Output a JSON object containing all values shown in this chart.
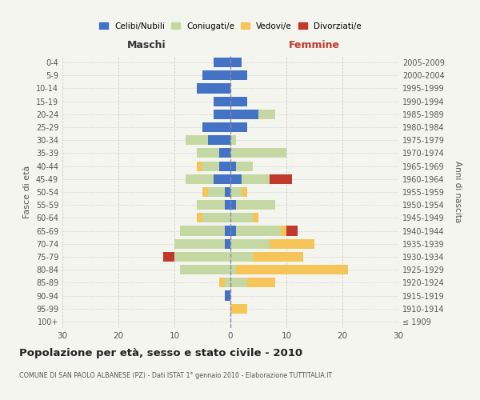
{
  "age_groups": [
    "100+",
    "95-99",
    "90-94",
    "85-89",
    "80-84",
    "75-79",
    "70-74",
    "65-69",
    "60-64",
    "55-59",
    "50-54",
    "45-49",
    "40-44",
    "35-39",
    "30-34",
    "25-29",
    "20-24",
    "15-19",
    "10-14",
    "5-9",
    "0-4"
  ],
  "birth_years": [
    "≤ 1909",
    "1910-1914",
    "1915-1919",
    "1920-1924",
    "1925-1929",
    "1930-1934",
    "1935-1939",
    "1940-1944",
    "1945-1949",
    "1950-1954",
    "1955-1959",
    "1960-1964",
    "1965-1969",
    "1970-1974",
    "1975-1979",
    "1980-1984",
    "1985-1989",
    "1990-1994",
    "1995-1999",
    "2000-2004",
    "2005-2009"
  ],
  "males": {
    "celibi": [
      0,
      0,
      1,
      0,
      0,
      0,
      1,
      1,
      0,
      1,
      1,
      3,
      2,
      2,
      4,
      5,
      3,
      3,
      6,
      5,
      3
    ],
    "coniugati": [
      0,
      0,
      0,
      1,
      9,
      10,
      9,
      8,
      5,
      5,
      3,
      5,
      3,
      4,
      4,
      0,
      0,
      0,
      0,
      0,
      0
    ],
    "vedovi": [
      0,
      0,
      0,
      1,
      0,
      0,
      0,
      0,
      1,
      0,
      1,
      0,
      1,
      0,
      0,
      0,
      0,
      0,
      0,
      0,
      0
    ],
    "divorziati": [
      0,
      0,
      0,
      0,
      0,
      2,
      0,
      0,
      0,
      0,
      0,
      0,
      0,
      0,
      0,
      0,
      0,
      0,
      0,
      0,
      0
    ]
  },
  "females": {
    "nubili": [
      0,
      0,
      0,
      0,
      0,
      0,
      0,
      1,
      0,
      1,
      0,
      2,
      1,
      0,
      0,
      3,
      5,
      3,
      0,
      3,
      2
    ],
    "coniugate": [
      0,
      0,
      0,
      3,
      1,
      4,
      7,
      8,
      4,
      7,
      2,
      5,
      3,
      10,
      1,
      0,
      3,
      0,
      0,
      0,
      0
    ],
    "vedove": [
      0,
      3,
      0,
      5,
      20,
      9,
      8,
      1,
      1,
      0,
      1,
      0,
      0,
      0,
      0,
      0,
      0,
      0,
      0,
      0,
      0
    ],
    "divorziate": [
      0,
      0,
      0,
      0,
      0,
      0,
      0,
      2,
      0,
      0,
      0,
      4,
      0,
      0,
      0,
      0,
      0,
      0,
      0,
      0,
      0
    ]
  },
  "colors": {
    "celibi": "#4472c4",
    "coniugati": "#c5d8a4",
    "vedovi": "#f5c55a",
    "divorziati": "#c0392b"
  },
  "xlim": 30,
  "title": "Popolazione per età, sesso e stato civile - 2010",
  "subtitle": "COMUNE DI SAN PAOLO ALBANESE (PZ) - Dati ISTAT 1° gennaio 2010 - Elaborazione TUTTITALIA.IT",
  "ylabel_left": "Fasce di età",
  "ylabel_right": "Anni di nascita",
  "xlabel_left": "Maschi",
  "xlabel_right": "Femmine",
  "background_color": "#f5f5f0",
  "grid_color": "#cccccc"
}
